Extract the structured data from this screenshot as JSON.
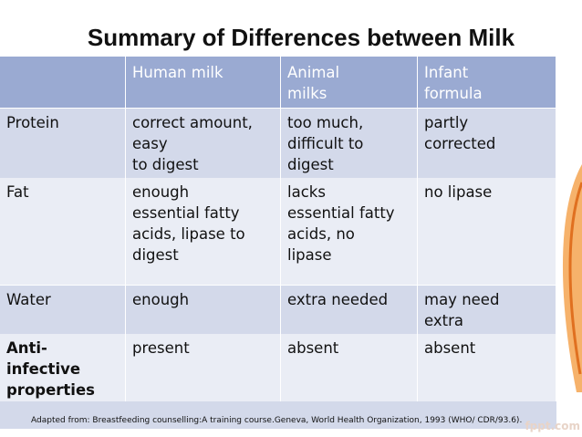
{
  "header": {
    "title": "Summary of Differences between Milk"
  },
  "table": {
    "columns": [
      "Human milk",
      "Animal\nmilks",
      "Infant\nformula"
    ],
    "rows": [
      {
        "label": "Protein",
        "cells": [
          "correct amount,\neasy\nto digest",
          "too much,\ndifficult to\ndigest",
          "partly\ncorrected"
        ]
      },
      {
        "label": "Fat",
        "cells": [
          "enough\nessential fatty\nacids, lipase to\ndigest",
          "lacks\nessential fatty\nacids, no\nlipase",
          "no lipase"
        ]
      },
      {
        "label": "Water",
        "cells": [
          "enough",
          "extra needed",
          "may need\nextra"
        ]
      },
      {
        "label": "Anti-\ninfective\nproperties",
        "cells": [
          "present",
          "absent",
          "absent"
        ]
      }
    ]
  },
  "footnote": "Adapted from: Breastfeeding counselling:A training course.Geneva, World Health Organization, 1993 (WHO/ CDR/93.6).",
  "watermark": "fppt.com"
}
